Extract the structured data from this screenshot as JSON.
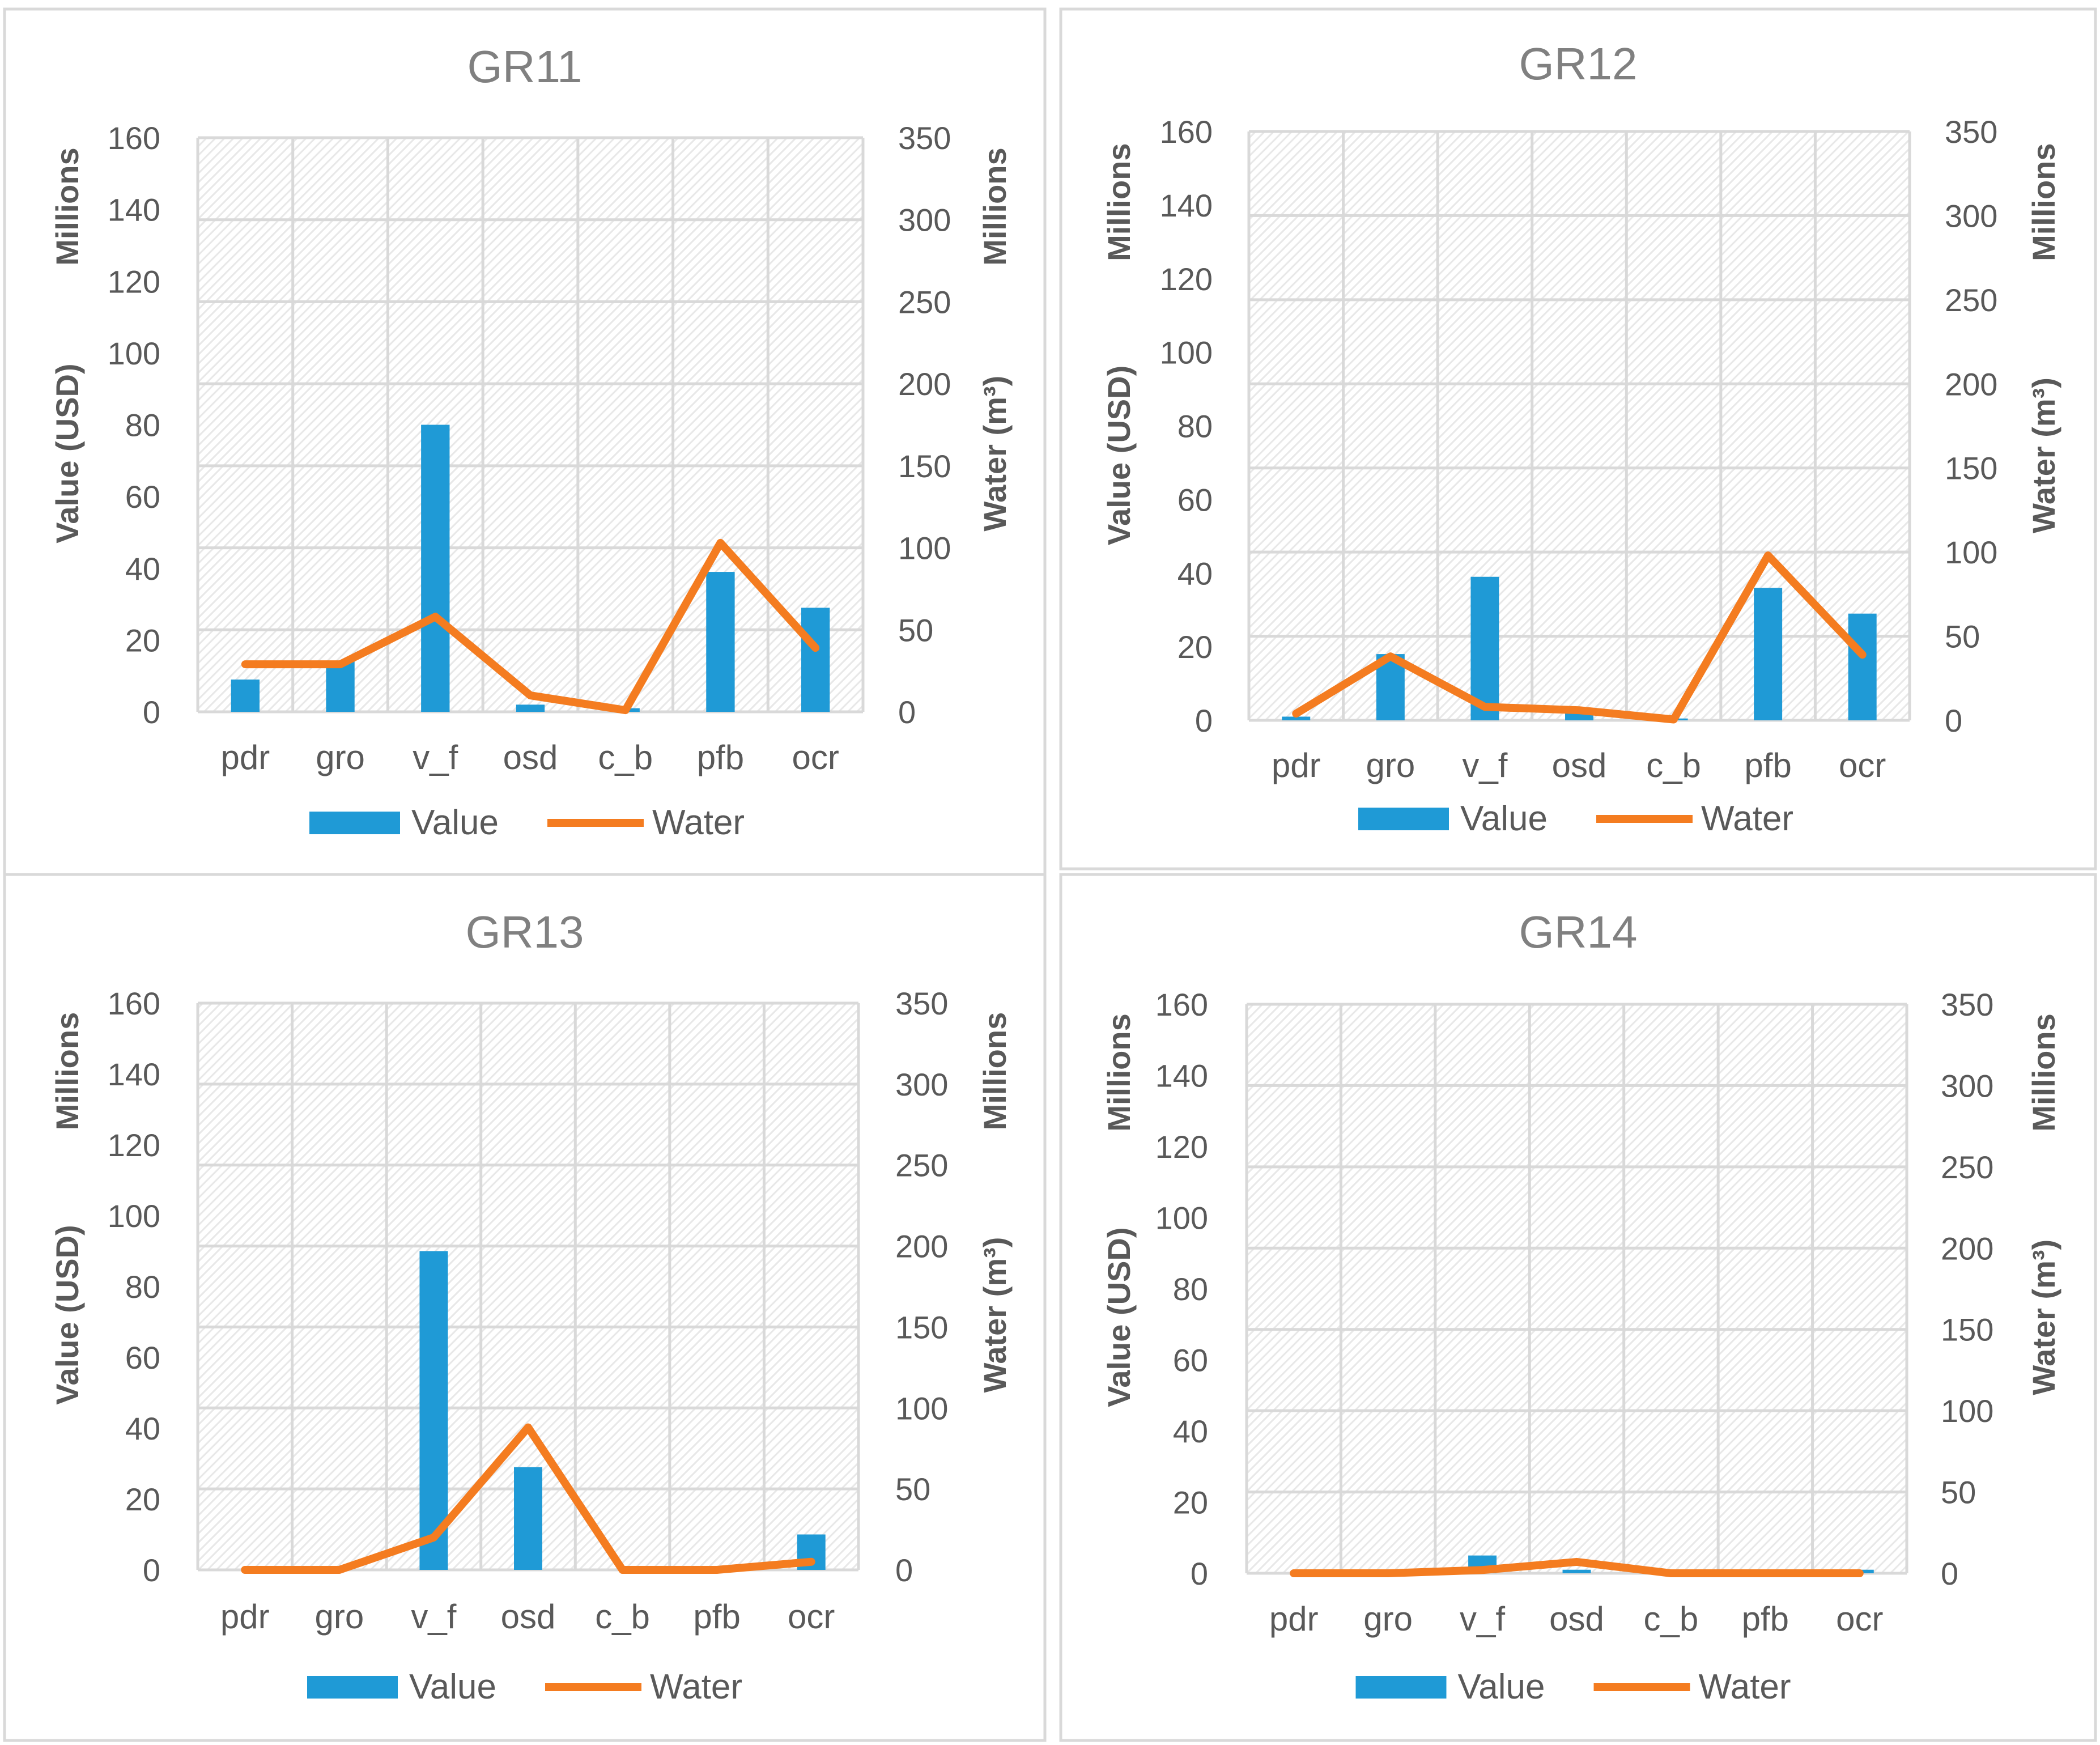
{
  "colors": {
    "value_bar": "#1f9ad6",
    "water_line": "#f47c20",
    "grid": "#d9d9d9",
    "hatch": "#e8e8e8",
    "text": "#595959",
    "title": "#808080"
  },
  "chart_data": [
    {
      "type": "bar+line",
      "title": "GR11",
      "categories": [
        "pdr",
        "gro",
        "v_f",
        "osd",
        "c_b",
        "pfb",
        "ocr"
      ],
      "series": [
        {
          "name": "Value",
          "type": "bar",
          "axis": "left",
          "values": [
            9,
            14,
            80,
            2,
            1,
            39,
            29
          ]
        },
        {
          "name": "Water",
          "type": "line",
          "axis": "right",
          "values": [
            29,
            29,
            58,
            10,
            1,
            103,
            39
          ]
        }
      ],
      "ylabel": "Value (USD)",
      "ylabel_units": "Millions",
      "y2label": "Water (m³)",
      "y2label_units": "Millions",
      "ylim": [
        0,
        160
      ],
      "y2lim": [
        0,
        350
      ],
      "yticks": [
        "0",
        "20",
        "40",
        "60",
        "80",
        "100",
        "120",
        "140",
        "160"
      ],
      "y2ticks": [
        "0",
        "50",
        "100",
        "150",
        "200",
        "250",
        "300",
        "350"
      ],
      "legend": [
        "Value",
        "Water"
      ],
      "legend_position": "bottom"
    },
    {
      "type": "bar+line",
      "title": "GR12",
      "categories": [
        "pdr",
        "gro",
        "v_f",
        "osd",
        "c_b",
        "pfb",
        "ocr"
      ],
      "series": [
        {
          "name": "Value",
          "type": "bar",
          "axis": "left",
          "values": [
            1,
            18,
            39,
            2,
            0.5,
            36,
            29
          ]
        },
        {
          "name": "Water",
          "type": "line",
          "axis": "right",
          "values": [
            4,
            38,
            8,
            6,
            0.5,
            98,
            39
          ]
        }
      ],
      "ylabel": "Value (USD)",
      "ylabel_units": "Millions",
      "y2label": "Water (m³)",
      "y2label_units": "Millions",
      "ylim": [
        0,
        160
      ],
      "y2lim": [
        0,
        350
      ],
      "yticks": [
        "0",
        "20",
        "40",
        "60",
        "80",
        "100",
        "120",
        "140",
        "160"
      ],
      "y2ticks": [
        "0",
        "50",
        "100",
        "150",
        "200",
        "250",
        "300",
        "350"
      ],
      "legend": [
        "Value",
        "Water"
      ],
      "legend_position": "bottom"
    },
    {
      "type": "bar+line",
      "title": "GR13",
      "categories": [
        "pdr",
        "gro",
        "v_f",
        "osd",
        "c_b",
        "pfb",
        "ocr"
      ],
      "series": [
        {
          "name": "Value",
          "type": "bar",
          "axis": "left",
          "values": [
            0,
            0,
            90,
            29,
            0,
            0,
            10
          ]
        },
        {
          "name": "Water",
          "type": "line",
          "axis": "right",
          "values": [
            0,
            0,
            20,
            88,
            0,
            0,
            5
          ]
        }
      ],
      "ylabel": "Value (USD)",
      "ylabel_units": "Millions",
      "y2label": "Water (m³)",
      "y2label_units": "Millions",
      "ylim": [
        0,
        160
      ],
      "y2lim": [
        0,
        350
      ],
      "yticks": [
        "0",
        "20",
        "40",
        "60",
        "80",
        "100",
        "120",
        "140",
        "160"
      ],
      "y2ticks": [
        "0",
        "50",
        "100",
        "150",
        "200",
        "250",
        "300",
        "350"
      ],
      "legend": [
        "Value",
        "Water"
      ],
      "legend_position": "bottom"
    },
    {
      "type": "bar+line",
      "title": "GR14",
      "categories": [
        "pdr",
        "gro",
        "v_f",
        "osd",
        "c_b",
        "pfb",
        "ocr"
      ],
      "series": [
        {
          "name": "Value",
          "type": "bar",
          "axis": "left",
          "values": [
            0,
            0,
            5,
            1,
            0,
            0,
            1
          ]
        },
        {
          "name": "Water",
          "type": "line",
          "axis": "right",
          "values": [
            0,
            0,
            2,
            7,
            0,
            0,
            0
          ]
        }
      ],
      "ylabel": "Value (USD)",
      "ylabel_units": "Millions",
      "y2label": "Water (m³)",
      "y2label_units": "Millions",
      "ylim": [
        0,
        160
      ],
      "y2lim": [
        0,
        350
      ],
      "yticks": [
        "0",
        "20",
        "40",
        "60",
        "80",
        "100",
        "120",
        "140",
        "160"
      ],
      "y2ticks": [
        "0",
        "50",
        "100",
        "150",
        "200",
        "250",
        "300",
        "350"
      ],
      "legend": [
        "Value",
        "Water"
      ],
      "legend_position": "bottom"
    }
  ]
}
